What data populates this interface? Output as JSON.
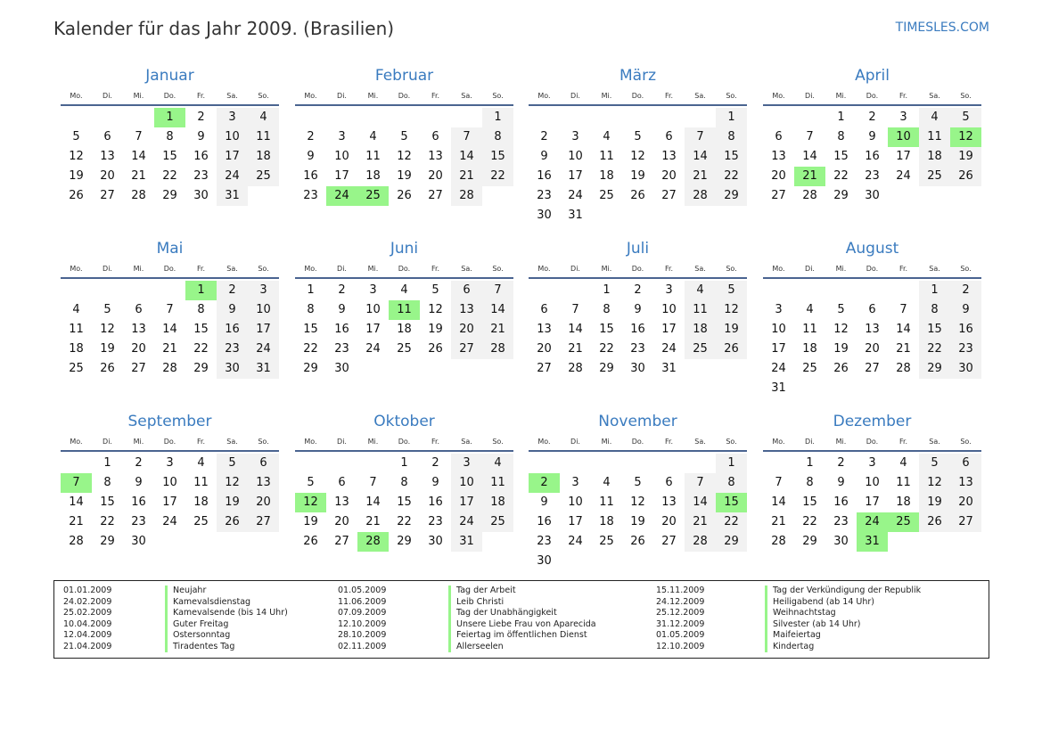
{
  "header": {
    "title": "Kalender für das Jahr 2009. (Brasilien)",
    "brand": "TIMESLES.COM"
  },
  "weekdays": [
    "Mo.",
    "Di.",
    "Mi.",
    "Do.",
    "Fr.",
    "Sa.",
    "So."
  ],
  "colors": {
    "accent": "#3a7bbf",
    "holiday": "#98f58a",
    "weekend": "#f2f2f2",
    "rule": "#4a6490"
  },
  "months": [
    {
      "name": "Januar",
      "first_weekday": 3,
      "days": 31,
      "holidays": [
        1
      ]
    },
    {
      "name": "Februar",
      "first_weekday": 6,
      "days": 28,
      "holidays": [
        24,
        25
      ]
    },
    {
      "name": "März",
      "first_weekday": 6,
      "days": 31,
      "holidays": []
    },
    {
      "name": "April",
      "first_weekday": 2,
      "days": 30,
      "holidays": [
        10,
        12,
        21
      ]
    },
    {
      "name": "Mai",
      "first_weekday": 4,
      "days": 31,
      "holidays": [
        1
      ]
    },
    {
      "name": "Juni",
      "first_weekday": 0,
      "days": 30,
      "holidays": [
        11
      ]
    },
    {
      "name": "Juli",
      "first_weekday": 2,
      "days": 31,
      "holidays": []
    },
    {
      "name": "August",
      "first_weekday": 5,
      "days": 31,
      "holidays": []
    },
    {
      "name": "September",
      "first_weekday": 1,
      "days": 30,
      "holidays": [
        7
      ]
    },
    {
      "name": "Oktober",
      "first_weekday": 3,
      "days": 31,
      "holidays": [
        12,
        28
      ]
    },
    {
      "name": "November",
      "first_weekday": 6,
      "days": 30,
      "holidays": [
        2,
        15
      ]
    },
    {
      "name": "Dezember",
      "first_weekday": 1,
      "days": 31,
      "holidays": [
        24,
        25,
        31
      ]
    }
  ],
  "holiday_list": [
    {
      "date": "01.01.2009",
      "name": "Neujahr"
    },
    {
      "date": "24.02.2009",
      "name": "Kamevalsdienstag"
    },
    {
      "date": "25.02.2009",
      "name": "Kamevalsende (bis 14 Uhr)"
    },
    {
      "date": "10.04.2009",
      "name": "Guter Freitag"
    },
    {
      "date": "12.04.2009",
      "name": "Ostersonntag"
    },
    {
      "date": "21.04.2009",
      "name": "Tiradentes Tag"
    },
    {
      "date": "01.05.2009",
      "name": "Tag der Arbeit"
    },
    {
      "date": "11.06.2009",
      "name": "Leib Christi"
    },
    {
      "date": "07.09.2009",
      "name": "Tag der Unabhängigkeit"
    },
    {
      "date": "12.10.2009",
      "name": "Unsere Liebe Frau von Aparecida"
    },
    {
      "date": "28.10.2009",
      "name": "Feiertag im öffentlichen Dienst"
    },
    {
      "date": "02.11.2009",
      "name": "Allerseelen"
    },
    {
      "date": "15.11.2009",
      "name": "Tag der Verkündigung der Republik"
    },
    {
      "date": "24.12.2009",
      "name": "Heiligabend (ab 14 Uhr)"
    },
    {
      "date": "25.12.2009",
      "name": "Weihnachtstag"
    },
    {
      "date": "31.12.2009",
      "name": "Silvester (ab 14 Uhr)"
    },
    {
      "date": "01.05.2009",
      "name": "Maifeiertag"
    },
    {
      "date": "12.10.2009",
      "name": "Kindertag"
    }
  ]
}
